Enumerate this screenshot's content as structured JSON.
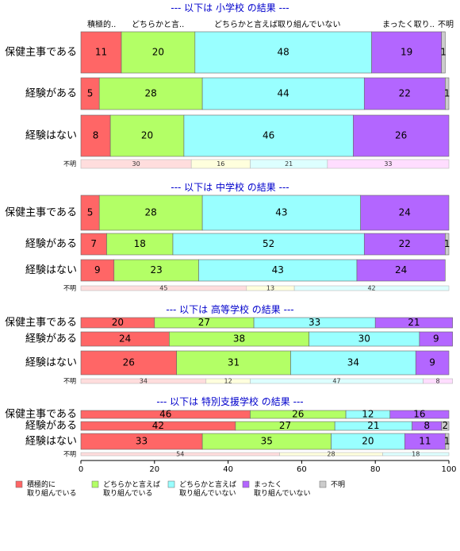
{
  "chart_data": {
    "type": "bar",
    "orientation": "horizontal-stacked",
    "colors": {
      "積極的に取り組んでいる": "#ff6666",
      "どちらかと言えば取り組んでいる": "#b3ff66",
      "どちらかと言えば取り組んでいない": "#99ffff",
      "まったく取り組んでいない": "#b366ff",
      "不明": "#cccccc"
    },
    "top_headers": [
      "積極的..",
      "どちらかと言..",
      "どちらかと言えば取り組んでいない",
      "まったく取り..",
      "不明"
    ],
    "xlim": [
      0,
      100
    ],
    "xticks": [
      "0",
      "20",
      "40",
      "60",
      "80",
      "100"
    ],
    "panels": [
      {
        "title": "--- 以下は 小学校 の結果 ---",
        "rows": [
          {
            "label": "保健主事である",
            "values": [
              11,
              20,
              48,
              19,
              1
            ]
          },
          {
            "label": "経験がある",
            "values": [
              5,
              28,
              44,
              22,
              1
            ]
          },
          {
            "label": "経験はない",
            "values": [
              8,
              20,
              46,
              26,
              0
            ]
          },
          {
            "label": "不明",
            "small": true,
            "values": [
              30,
              16,
              21,
              33,
              0
            ]
          }
        ]
      },
      {
        "title": "--- 以下は 中学校 の結果 ---",
        "rows": [
          {
            "label": "保健主事である",
            "values": [
              5,
              28,
              43,
              24,
              0
            ]
          },
          {
            "label": "経験がある",
            "values": [
              7,
              18,
              52,
              22,
              1
            ]
          },
          {
            "label": "経験はない",
            "values": [
              9,
              23,
              43,
              24,
              0
            ]
          },
          {
            "label": "不明",
            "small": true,
            "values": [
              45,
              13,
              42,
              0,
              0
            ]
          }
        ]
      },
      {
        "title": "--- 以下は 高等学校 の結果 ---",
        "rows": [
          {
            "label": "保健主事である",
            "values": [
              20,
              27,
              33,
              21,
              0
            ]
          },
          {
            "label": "経験がある",
            "values": [
              24,
              38,
              30,
              9,
              0
            ]
          },
          {
            "label": "経験はない",
            "values": [
              26,
              31,
              34,
              9,
              0
            ]
          },
          {
            "label": "不明",
            "small": true,
            "values": [
              34,
              12,
              47,
              8,
              0
            ]
          }
        ]
      },
      {
        "title": "--- 以下は 特別支援学校 の結果 ---",
        "rows": [
          {
            "label": "保健主事である",
            "values": [
              46,
              26,
              12,
              16,
              0
            ]
          },
          {
            "label": "経験がある",
            "values": [
              42,
              27,
              21,
              8,
              2
            ]
          },
          {
            "label": "経験はない",
            "values": [
              33,
              35,
              20,
              11,
              1
            ]
          },
          {
            "label": "不明",
            "small": true,
            "values": [
              54,
              28,
              18,
              0,
              0
            ]
          }
        ]
      }
    ],
    "legend": [
      {
        "label_lines": [
          "積極的に",
          "取り組んでいる"
        ],
        "color": "#ff6666"
      },
      {
        "label_lines": [
          "どちらかと言えば",
          "取り組んでいる"
        ],
        "color": "#b3ff66"
      },
      {
        "label_lines": [
          "どちらかと言えば",
          "取り組んでいない"
        ],
        "color": "#99ffff"
      },
      {
        "label_lines": [
          "まったく",
          "取り組んでいない"
        ],
        "color": "#b366ff"
      },
      {
        "label_lines": [
          "不明"
        ],
        "color": "#cccccc"
      }
    ]
  }
}
